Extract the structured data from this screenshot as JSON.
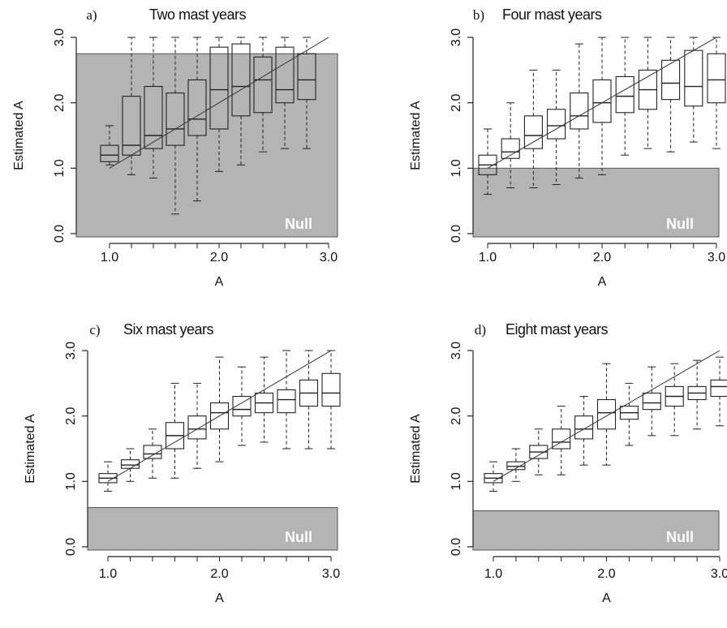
{
  "chart_data": [
    {
      "type": "box",
      "panel_label": "a)",
      "title": "Two mast years",
      "xlabel": "A",
      "ylabel": "Estimated A",
      "xlim": [
        0.8,
        3.1
      ],
      "ylim": [
        -0.1,
        3.1
      ],
      "xticks": [
        1.0,
        2.0,
        3.0
      ],
      "xtick_labels": [
        "1.0",
        "2.0",
        "3.0"
      ],
      "yticks": [
        0.0,
        1.0,
        2.0,
        3.0
      ],
      "ytick_labels": [
        "0.0",
        "1.0",
        "2.0",
        "3.0"
      ],
      "null_region": {
        "label": "Null",
        "ymax": 2.75
      },
      "reference_line": {
        "from": [
          1.0,
          1.0
        ],
        "to": [
          3.0,
          3.0
        ]
      },
      "boxes": [
        {
          "x": 1.0,
          "min": 1.05,
          "q1": 1.1,
          "median": 1.2,
          "q3": 1.35,
          "max": 1.65
        },
        {
          "x": 1.2,
          "min": 0.9,
          "q1": 1.2,
          "median": 1.35,
          "q3": 2.1,
          "max": 3.0
        },
        {
          "x": 1.4,
          "min": 0.85,
          "q1": 1.3,
          "median": 1.5,
          "q3": 2.25,
          "max": 3.0
        },
        {
          "x": 1.6,
          "min": 0.3,
          "q1": 1.35,
          "median": 1.6,
          "q3": 2.15,
          "max": 3.0
        },
        {
          "x": 1.8,
          "min": 0.5,
          "q1": 1.5,
          "median": 1.75,
          "q3": 2.35,
          "max": 3.0
        },
        {
          "x": 2.0,
          "min": 0.95,
          "q1": 1.6,
          "median": 2.2,
          "q3": 2.85,
          "max": 3.0
        },
        {
          "x": 2.2,
          "min": 1.05,
          "q1": 1.8,
          "median": 2.25,
          "q3": 2.9,
          "max": 3.0
        },
        {
          "x": 2.4,
          "min": 1.25,
          "q1": 1.85,
          "median": 2.35,
          "q3": 2.7,
          "max": 3.0
        },
        {
          "x": 2.6,
          "min": 1.3,
          "q1": 2.0,
          "median": 2.2,
          "q3": 2.85,
          "max": 3.0
        },
        {
          "x": 2.8,
          "min": 1.3,
          "q1": 2.05,
          "median": 2.35,
          "q3": 2.75,
          "max": 3.0
        }
      ]
    },
    {
      "type": "box",
      "panel_label": "b)",
      "title": "Four mast years",
      "xlabel": "A",
      "ylabel": "Estimated A",
      "xlim": [
        0.8,
        3.1
      ],
      "ylim": [
        -0.1,
        3.1
      ],
      "xticks": [
        1.0,
        2.0,
        3.0
      ],
      "xtick_labels": [
        "1.0",
        "2.0",
        "3.0"
      ],
      "yticks": [
        0.0,
        1.0,
        2.0,
        3.0
      ],
      "ytick_labels": [
        "0.0",
        "1.0",
        "2.0",
        "3.0"
      ],
      "null_region": {
        "label": "Null",
        "ymax": 1.0
      },
      "reference_line": {
        "from": [
          1.0,
          1.0
        ],
        "to": [
          3.0,
          3.0
        ]
      },
      "boxes": [
        {
          "x": 1.0,
          "min": 0.6,
          "q1": 0.9,
          "median": 1.05,
          "q3": 1.2,
          "max": 1.6
        },
        {
          "x": 1.2,
          "min": 0.7,
          "q1": 1.15,
          "median": 1.25,
          "q3": 1.45,
          "max": 2.0
        },
        {
          "x": 1.4,
          "min": 0.7,
          "q1": 1.3,
          "median": 1.5,
          "q3": 1.8,
          "max": 2.5
        },
        {
          "x": 1.6,
          "min": 0.75,
          "q1": 1.45,
          "median": 1.65,
          "q3": 1.9,
          "max": 2.5
        },
        {
          "x": 1.8,
          "min": 0.85,
          "q1": 1.6,
          "median": 1.8,
          "q3": 2.15,
          "max": 2.9
        },
        {
          "x": 2.0,
          "min": 0.9,
          "q1": 1.7,
          "median": 2.0,
          "q3": 2.35,
          "max": 3.0
        },
        {
          "x": 2.2,
          "min": 1.2,
          "q1": 1.85,
          "median": 2.1,
          "q3": 2.4,
          "max": 3.0
        },
        {
          "x": 2.4,
          "min": 1.3,
          "q1": 1.9,
          "median": 2.2,
          "q3": 2.5,
          "max": 3.0
        },
        {
          "x": 2.6,
          "min": 1.25,
          "q1": 2.05,
          "median": 2.3,
          "q3": 2.65,
          "max": 3.0
        },
        {
          "x": 2.8,
          "min": 1.4,
          "q1": 1.95,
          "median": 2.25,
          "q3": 2.8,
          "max": 3.0
        },
        {
          "x": 3.0,
          "min": 1.3,
          "q1": 2.0,
          "median": 2.35,
          "q3": 2.75,
          "max": 3.0
        }
      ]
    },
    {
      "type": "box",
      "panel_label": "c)",
      "title": "Six mast years",
      "xlabel": "A",
      "ylabel": "Estimated A",
      "xlim": [
        0.8,
        3.1
      ],
      "ylim": [
        -0.1,
        3.1
      ],
      "xticks": [
        1.0,
        2.0,
        3.0
      ],
      "xtick_labels": [
        "1.0",
        "2.0",
        "3.0"
      ],
      "yticks": [
        0.0,
        1.0,
        2.0,
        3.0
      ],
      "ytick_labels": [
        "0.0",
        "1.0",
        "2.0",
        "3.0"
      ],
      "null_region": {
        "label": "Null",
        "ymax": 0.6
      },
      "reference_line": {
        "from": [
          1.0,
          1.0
        ],
        "to": [
          3.0,
          3.0
        ]
      },
      "boxes": [
        {
          "x": 1.0,
          "min": 0.85,
          "q1": 0.98,
          "median": 1.05,
          "q3": 1.12,
          "max": 1.3
        },
        {
          "x": 1.2,
          "min": 1.0,
          "q1": 1.2,
          "median": 1.25,
          "q3": 1.33,
          "max": 1.5
        },
        {
          "x": 1.4,
          "min": 1.05,
          "q1": 1.35,
          "median": 1.42,
          "q3": 1.55,
          "max": 1.8
        },
        {
          "x": 1.6,
          "min": 1.05,
          "q1": 1.5,
          "median": 1.7,
          "q3": 1.9,
          "max": 2.5
        },
        {
          "x": 1.8,
          "min": 1.2,
          "q1": 1.65,
          "median": 1.8,
          "q3": 2.0,
          "max": 2.5
        },
        {
          "x": 2.0,
          "min": 1.3,
          "q1": 1.8,
          "median": 2.05,
          "q3": 2.2,
          "max": 2.9
        },
        {
          "x": 2.2,
          "min": 1.55,
          "q1": 2.0,
          "median": 2.1,
          "q3": 2.3,
          "max": 2.75
        },
        {
          "x": 2.4,
          "min": 1.6,
          "q1": 2.05,
          "median": 2.2,
          "q3": 2.35,
          "max": 2.9
        },
        {
          "x": 2.6,
          "min": 1.5,
          "q1": 2.05,
          "median": 2.25,
          "q3": 2.4,
          "max": 3.0
        },
        {
          "x": 2.8,
          "min": 1.5,
          "q1": 2.15,
          "median": 2.35,
          "q3": 2.55,
          "max": 3.0
        },
        {
          "x": 3.0,
          "min": 1.5,
          "q1": 2.15,
          "median": 2.35,
          "q3": 2.65,
          "max": 3.0
        }
      ]
    },
    {
      "type": "box",
      "panel_label": "d)",
      "title": "Eight mast years",
      "xlabel": "A",
      "ylabel": "Estimated A",
      "xlim": [
        0.8,
        3.1
      ],
      "ylim": [
        -0.1,
        3.1
      ],
      "xticks": [
        1.0,
        2.0,
        3.0
      ],
      "xtick_labels": [
        "1.0",
        "2.0",
        "3.0"
      ],
      "yticks": [
        0.0,
        1.0,
        2.0,
        3.0
      ],
      "ytick_labels": [
        "0.0",
        "1.0",
        "2.0",
        "3.0"
      ],
      "null_region": {
        "label": "Null",
        "ymax": 0.55
      },
      "reference_line": {
        "from": [
          1.0,
          1.0
        ],
        "to": [
          3.0,
          3.0
        ]
      },
      "boxes": [
        {
          "x": 1.0,
          "min": 0.85,
          "q1": 0.98,
          "median": 1.05,
          "q3": 1.12,
          "max": 1.3
        },
        {
          "x": 1.2,
          "min": 1.0,
          "q1": 1.18,
          "median": 1.23,
          "q3": 1.3,
          "max": 1.5
        },
        {
          "x": 1.4,
          "min": 1.1,
          "q1": 1.35,
          "median": 1.45,
          "q3": 1.55,
          "max": 1.8
        },
        {
          "x": 1.6,
          "min": 1.1,
          "q1": 1.5,
          "median": 1.6,
          "q3": 1.8,
          "max": 2.15
        },
        {
          "x": 1.8,
          "min": 1.25,
          "q1": 1.65,
          "median": 1.8,
          "q3": 2.0,
          "max": 2.3
        },
        {
          "x": 2.0,
          "min": 1.25,
          "q1": 1.8,
          "median": 2.05,
          "q3": 2.25,
          "max": 2.8
        },
        {
          "x": 2.2,
          "min": 1.55,
          "q1": 1.95,
          "median": 2.05,
          "q3": 2.15,
          "max": 2.5
        },
        {
          "x": 2.4,
          "min": 1.7,
          "q1": 2.1,
          "median": 2.2,
          "q3": 2.35,
          "max": 2.75
        },
        {
          "x": 2.6,
          "min": 1.7,
          "q1": 2.15,
          "median": 2.3,
          "q3": 2.45,
          "max": 2.8
        },
        {
          "x": 2.8,
          "min": 1.8,
          "q1": 2.25,
          "median": 2.35,
          "q3": 2.45,
          "max": 2.85
        },
        {
          "x": 3.0,
          "min": 1.85,
          "q1": 2.3,
          "median": 2.45,
          "q3": 2.55,
          "max": 2.9
        }
      ]
    }
  ]
}
